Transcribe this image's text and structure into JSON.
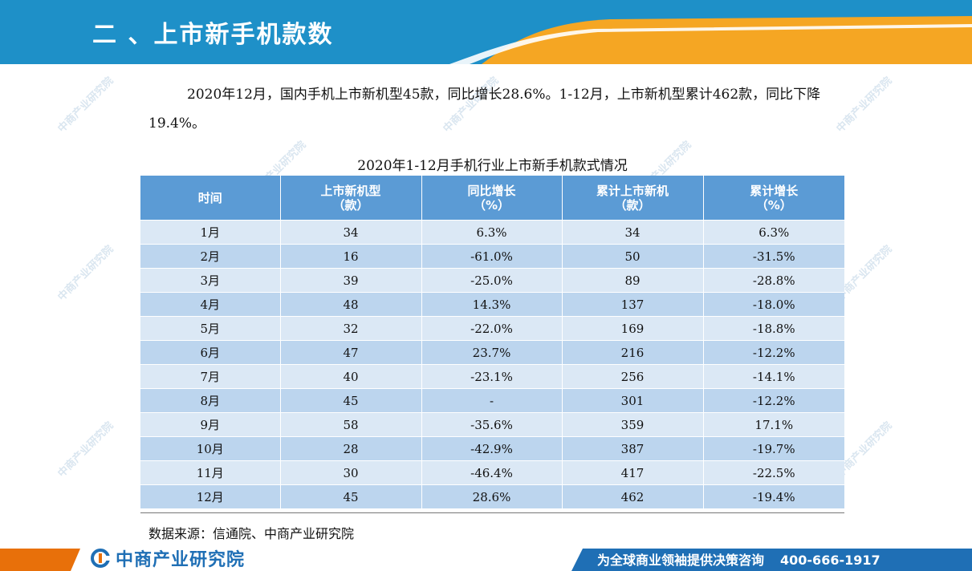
{
  "header": {
    "title": "二 、上市新手机款数",
    "colors": {
      "blue": "#1e90c8",
      "orange": "#f5a623"
    }
  },
  "intro": {
    "text": "2020年12月，国内手机上市新机型45款，同比增长28.6%。1-12月，上市新机型累计462款，同比下降19.4%。"
  },
  "table": {
    "title": "2020年1-12月手机行业上市新手机款式情况",
    "headers": [
      {
        "line1": "时间",
        "line2": ""
      },
      {
        "line1": "上市新机型",
        "line2": "（款）"
      },
      {
        "line1": "同比增长",
        "line2": "（%）"
      },
      {
        "line1": "累计上市新机",
        "line2": "（款）"
      },
      {
        "line1": "累计增长",
        "line2": "（%）"
      }
    ],
    "rows": [
      [
        "1月",
        "34",
        "6.3%",
        "34",
        "6.3%"
      ],
      [
        "2月",
        "16",
        "-61.0%",
        "50",
        "-31.5%"
      ],
      [
        "3月",
        "39",
        "-25.0%",
        "89",
        "-28.8%"
      ],
      [
        "4月",
        "48",
        "14.3%",
        "137",
        "-18.0%"
      ],
      [
        "5月",
        "32",
        "-22.0%",
        "169",
        "-18.8%"
      ],
      [
        "6月",
        "47",
        "23.7%",
        "216",
        "-12.2%"
      ],
      [
        "7月",
        "40",
        "-23.1%",
        "256",
        "-14.1%"
      ],
      [
        "8月",
        "45",
        "-",
        "301",
        "-12.2%"
      ],
      [
        "9月",
        "58",
        "-35.6%",
        "359",
        "17.1%"
      ],
      [
        "10月",
        "28",
        "-42.9%",
        "387",
        "-19.7%"
      ],
      [
        "11月",
        "30",
        "-46.4%",
        "417",
        "-22.5%"
      ],
      [
        "12月",
        "45",
        "28.6%",
        "462",
        "-19.4%"
      ]
    ],
    "colors": {
      "header": "#5b9bd5",
      "row_light": "#dbe8f5",
      "row_dark": "#bcd5ee"
    }
  },
  "source": "数据来源：信通院、中商产业研究院",
  "watermark": "中商产业研究院",
  "footer": {
    "logo_text": "中商产业研究院",
    "slogan": "为全球商业领袖提供决策咨询",
    "phone": "400-666-1917",
    "colors": {
      "orange": "#e8700a",
      "blue": "#1f6fb5"
    }
  }
}
